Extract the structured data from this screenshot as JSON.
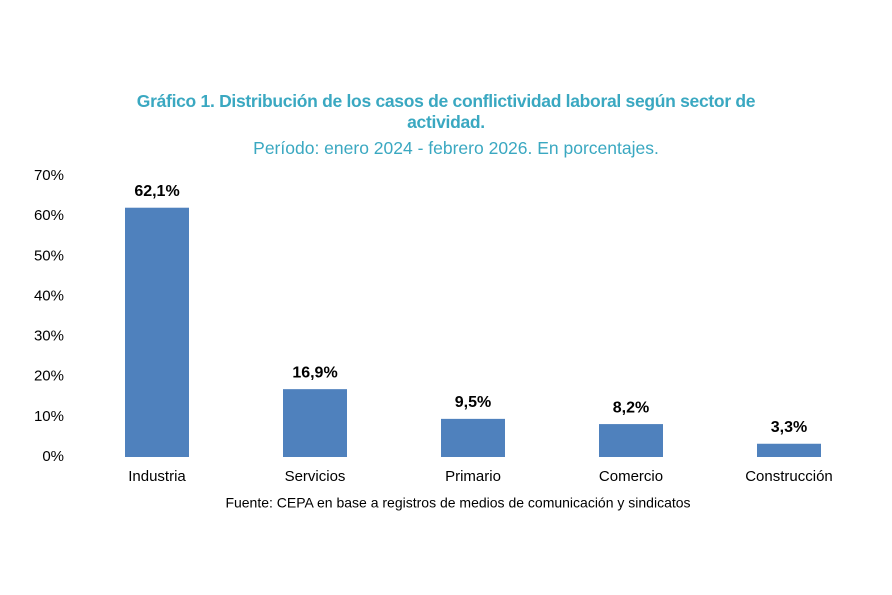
{
  "chart_data": {
    "type": "bar",
    "title": "Gráfico 1.  Distribución de los casos de conflictividad laboral según sector de actividad.",
    "subtitle": "Período: enero 2024 - febrero 2026. En porcentajes.",
    "categories": [
      "Industria",
      "Servicios",
      "Primario",
      "Comercio",
      "Construcción"
    ],
    "values": [
      62.1,
      16.9,
      9.5,
      8.2,
      3.3
    ],
    "value_labels": [
      "62,1%",
      "16,9%",
      "9,5%",
      "8,2%",
      "3,3%"
    ],
    "color": "#4f81bd",
    "ylim": [
      0,
      70
    ],
    "yticks": [
      {
        "value": 0,
        "label": "0%"
      },
      {
        "value": 10,
        "label": "10%"
      },
      {
        "value": 20,
        "label": "20%"
      },
      {
        "value": 30,
        "label": "30%"
      },
      {
        "value": 40,
        "label": "40%"
      },
      {
        "value": 50,
        "label": "50%"
      },
      {
        "value": 60,
        "label": "60%"
      },
      {
        "value": 70,
        "label": "70%"
      }
    ],
    "grid": false,
    "source": "Fuente: CEPA en base a registros de medios de comunicación y sindicatos"
  }
}
